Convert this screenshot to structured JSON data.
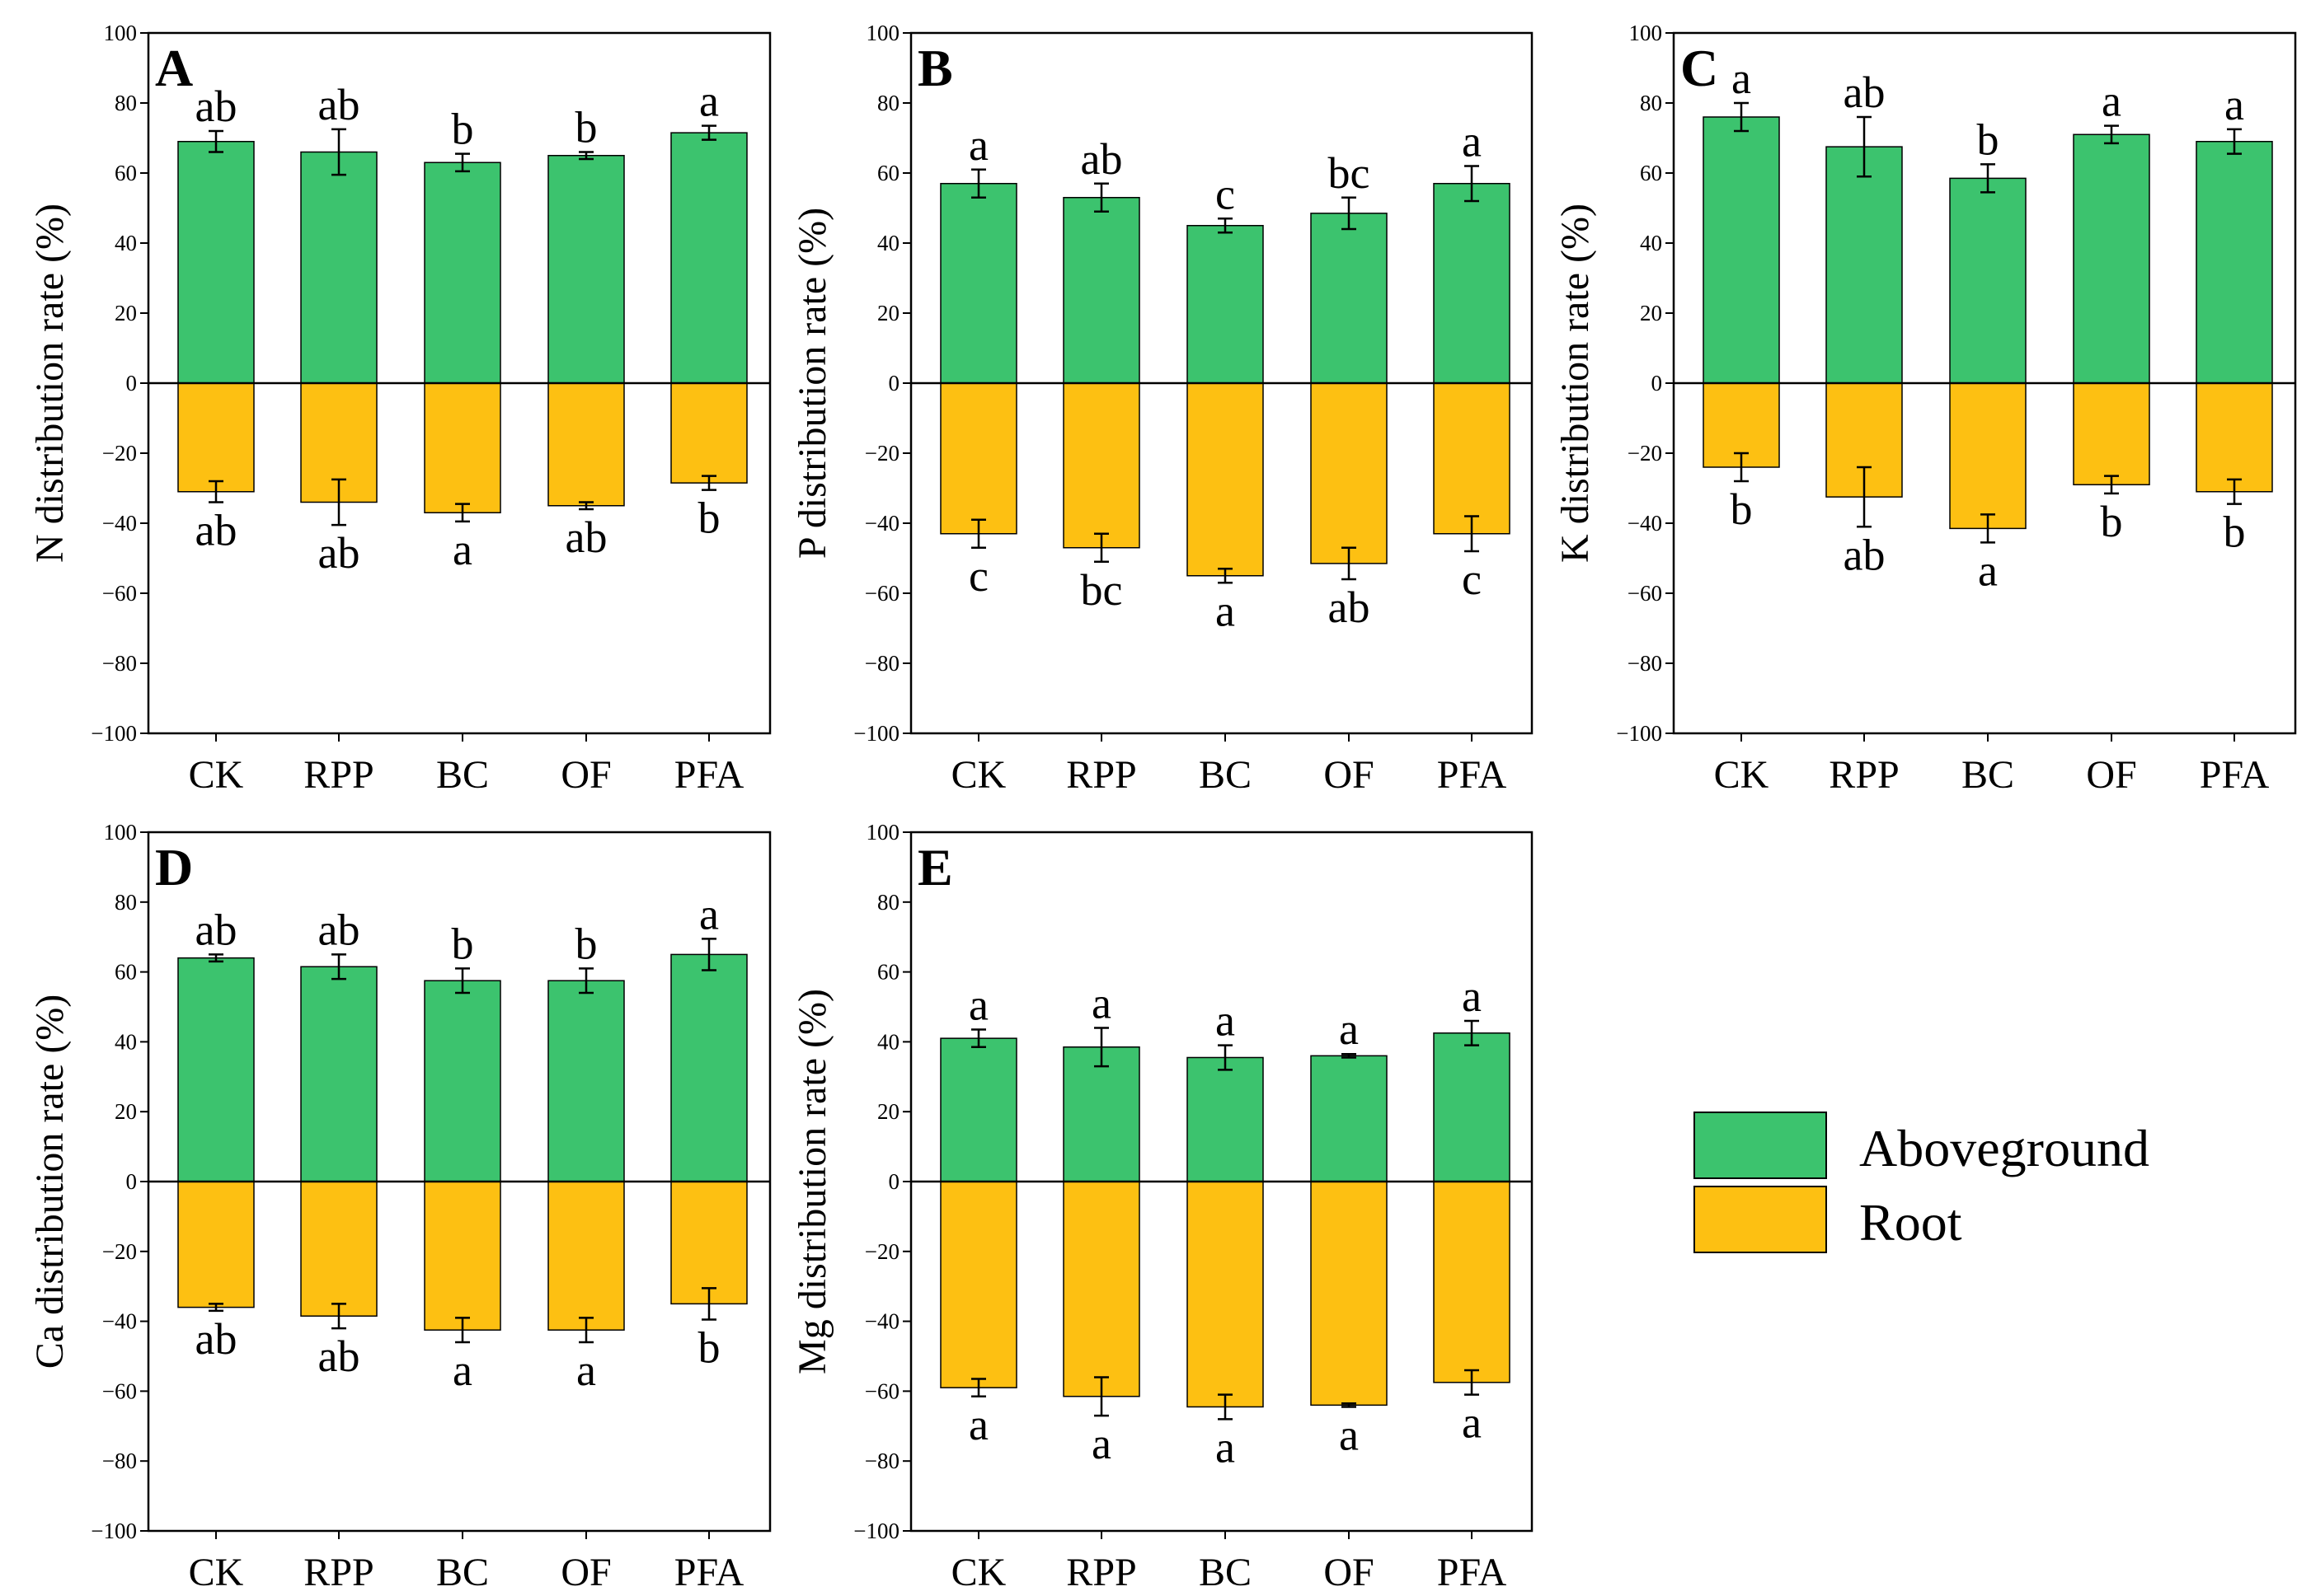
{
  "colors": {
    "aboveground": "#3cc36e",
    "root": "#fdc012",
    "axis": "#000000"
  },
  "legend": {
    "items": [
      {
        "label": "Aboveground",
        "color": "#3cc36e"
      },
      {
        "label": "Root",
        "color": "#fdc012"
      }
    ]
  },
  "chart_data": [
    {
      "type": "bar",
      "panel": "A",
      "ylabel": "N distribution rate (%)",
      "categories": [
        "CK",
        "RPP",
        "BC",
        "OF",
        "PFA"
      ],
      "ylim": [
        -100,
        100
      ],
      "yticks": [
        "100",
        "80",
        "60",
        "40",
        "20",
        "0",
        "−20",
        "−40",
        "−60",
        "−80",
        "−100"
      ],
      "series": [
        {
          "name": "Aboveground",
          "values": [
            69,
            66,
            63,
            65,
            71.5
          ],
          "errors": [
            3,
            6.5,
            2.5,
            1,
            2
          ],
          "letters": [
            "ab",
            "ab",
            "b",
            "b",
            "a"
          ]
        },
        {
          "name": "Root",
          "values": [
            -31,
            -34,
            -37,
            -35,
            -28.5
          ],
          "errors": [
            3,
            6.5,
            2.5,
            1,
            2
          ],
          "letters": [
            "ab",
            "ab",
            "a",
            "ab",
            "b"
          ]
        }
      ]
    },
    {
      "type": "bar",
      "panel": "B",
      "ylabel": "P distribution rate (%)",
      "categories": [
        "CK",
        "RPP",
        "BC",
        "OF",
        "PFA"
      ],
      "ylim": [
        -100,
        100
      ],
      "yticks": [
        "100",
        "80",
        "60",
        "40",
        "20",
        "0",
        "−20",
        "−40",
        "−60",
        "−80",
        "−100"
      ],
      "series": [
        {
          "name": "Aboveground",
          "values": [
            57,
            53,
            45,
            48.5,
            57
          ],
          "errors": [
            4,
            4,
            2,
            4.5,
            5
          ],
          "letters": [
            "a",
            "ab",
            "c",
            "bc",
            "a"
          ]
        },
        {
          "name": "Root",
          "values": [
            -43,
            -47,
            -55,
            -51.5,
            -43
          ],
          "errors": [
            4,
            4,
            2,
            4.5,
            5
          ],
          "letters": [
            "c",
            "bc",
            "a",
            "ab",
            "c"
          ]
        }
      ]
    },
    {
      "type": "bar",
      "panel": "C",
      "ylabel": "K distribution rate (%)",
      "categories": [
        "CK",
        "RPP",
        "BC",
        "OF",
        "PFA"
      ],
      "ylim": [
        -100,
        100
      ],
      "yticks": [
        "100",
        "80",
        "60",
        "40",
        "20",
        "0",
        "−20",
        "−40",
        "−60",
        "−80",
        "−100"
      ],
      "series": [
        {
          "name": "Aboveground",
          "values": [
            76,
            67.5,
            58.5,
            71,
            69
          ],
          "errors": [
            4,
            8.5,
            4,
            2.5,
            3.5
          ],
          "letters": [
            "a",
            "ab",
            "b",
            "a",
            "a"
          ]
        },
        {
          "name": "Root",
          "values": [
            -24,
            -32.5,
            -41.5,
            -29,
            -31
          ],
          "errors": [
            4,
            8.5,
            4,
            2.5,
            3.5
          ],
          "letters": [
            "b",
            "ab",
            "a",
            "b",
            "b"
          ]
        }
      ]
    },
    {
      "type": "bar",
      "panel": "D",
      "ylabel": "Ca distribution rate (%)",
      "categories": [
        "CK",
        "RPP",
        "BC",
        "OF",
        "PFA"
      ],
      "ylim": [
        -100,
        100
      ],
      "yticks": [
        "100",
        "80",
        "60",
        "40",
        "20",
        "0",
        "−20",
        "−40",
        "−60",
        "−80",
        "−100"
      ],
      "series": [
        {
          "name": "Aboveground",
          "values": [
            64,
            61.5,
            57.5,
            57.5,
            65
          ],
          "errors": [
            1,
            3.5,
            3.5,
            3.5,
            4.5
          ],
          "letters": [
            "ab",
            "ab",
            "b",
            "b",
            "a"
          ]
        },
        {
          "name": "Root",
          "values": [
            -36,
            -38.5,
            -42.5,
            -42.5,
            -35
          ],
          "errors": [
            1,
            3.5,
            3.5,
            3.5,
            4.5
          ],
          "letters": [
            "ab",
            "ab",
            "a",
            "a",
            "b"
          ]
        }
      ]
    },
    {
      "type": "bar",
      "panel": "E",
      "ylabel": "Mg distribution rate (%)",
      "categories": [
        "CK",
        "RPP",
        "BC",
        "OF",
        "PFA"
      ],
      "ylim": [
        -100,
        100
      ],
      "yticks": [
        "100",
        "80",
        "60",
        "40",
        "20",
        "0",
        "−20",
        "−40",
        "−60",
        "−80",
        "−100"
      ],
      "series": [
        {
          "name": "Aboveground",
          "values": [
            41,
            38.5,
            35.5,
            36,
            42.5
          ],
          "errors": [
            2.5,
            5.5,
            3.5,
            0.5,
            3.5
          ],
          "letters": [
            "a",
            "a",
            "a",
            "a",
            "a"
          ]
        },
        {
          "name": "Root",
          "values": [
            -59,
            -61.5,
            -64.5,
            -64,
            -57.5
          ],
          "errors": [
            2.5,
            5.5,
            3.5,
            0.5,
            3.5
          ],
          "letters": [
            "a",
            "a",
            "a",
            "a",
            "a"
          ]
        }
      ]
    }
  ]
}
